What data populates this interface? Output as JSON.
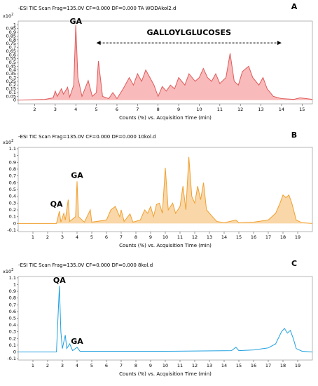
{
  "chart_data": [
    {
      "type": "line",
      "title": "-ESI TIC Scan Frag=135.0V CF=0.000 DF=0.000 TA WODAkol2.d",
      "panel_label": "A",
      "y_scale": {
        "base": "x10",
        "exponent": "2"
      },
      "x_label": "Counts (%) vs. Acquisition Time (min)",
      "color": "#e05a5a",
      "fill": "#f6a9a9",
      "xlim": [
        1.2,
        15.5
      ],
      "xticks": [
        2,
        3,
        4,
        5,
        6,
        7,
        8,
        9,
        10,
        11,
        12,
        13,
        14,
        15
      ],
      "ylim": [
        -0.05,
        1.05
      ],
      "yticks": [
        0,
        0.05,
        0.1,
        0.15,
        0.2,
        0.25,
        0.3,
        0.35,
        0.4,
        0.45,
        0.5,
        0.55,
        0.6,
        0.65,
        0.7,
        0.75,
        0.8,
        0.85,
        0.9,
        0.95,
        1
      ],
      "x": [
        1.2,
        2.5,
        2.9,
        3.0,
        3.1,
        3.3,
        3.4,
        3.6,
        3.7,
        3.9,
        4.0,
        4.1,
        4.3,
        4.6,
        4.8,
        5.0,
        5.1,
        5.3,
        5.6,
        5.8,
        6.0,
        6.3,
        6.6,
        6.8,
        7.0,
        7.2,
        7.4,
        7.6,
        7.8,
        8.0,
        8.2,
        8.4,
        8.6,
        8.8,
        9.0,
        9.3,
        9.5,
        9.8,
        10.0,
        10.2,
        10.4,
        10.6,
        10.8,
        11.0,
        11.3,
        11.5,
        11.7,
        11.9,
        12.1,
        12.4,
        12.6,
        12.9,
        13.1,
        13.3,
        13.6,
        14.0,
        14.6,
        14.9,
        15.5
      ],
      "values": [
        0,
        0.01,
        0.03,
        0.12,
        0.05,
        0.15,
        0.08,
        0.17,
        0.04,
        0.2,
        1.0,
        0.3,
        0.05,
        0.26,
        0.05,
        0.1,
        0.52,
        0.05,
        0.02,
        0.1,
        0.02,
        0.15,
        0.3,
        0.2,
        0.35,
        0.25,
        0.4,
        0.3,
        0.2,
        0.05,
        0.18,
        0.12,
        0.2,
        0.15,
        0.3,
        0.2,
        0.35,
        0.25,
        0.3,
        0.42,
        0.3,
        0.25,
        0.35,
        0.22,
        0.3,
        0.62,
        0.25,
        0.2,
        0.38,
        0.45,
        0.3,
        0.2,
        0.3,
        0.15,
        0.05,
        0.02,
        0.01,
        0.03,
        0.01
      ],
      "annotations": [
        {
          "text": "GA",
          "x": 4,
          "y": 1.04
        }
      ],
      "range_annotations": [
        {
          "text": "GALLOYLGLUCOSES",
          "x": [
            5,
            14
          ],
          "y": 0.76
        }
      ]
    },
    {
      "type": "line",
      "title": "-ESI TIC Scan Frag=135.0V CF=0.000 DF=0.000 10kol.d",
      "panel_label": "B",
      "y_scale": {
        "base": "x10",
        "exponent": "2"
      },
      "x_label": "Counts (%) vs. Acquisition Time (min)",
      "color": "#f0a030",
      "fill": "#f8cd92",
      "xlim": [
        0,
        20
      ],
      "xticks": [
        1,
        2,
        3,
        4,
        5,
        6,
        7,
        8,
        9,
        10,
        11,
        12,
        13,
        14,
        15,
        16,
        17,
        18,
        19
      ],
      "ylim": [
        -0.12,
        1.12
      ],
      "yticks": [
        -0.1,
        0,
        0.1,
        0.2,
        0.3,
        0.4,
        0.5,
        0.6,
        0.7,
        0.8,
        0.9,
        1,
        1.1
      ],
      "x": [
        0,
        2.6,
        2.8,
        2.9,
        3.1,
        3.2,
        3.4,
        3.5,
        3.9,
        4.0,
        4.1,
        4.5,
        4.9,
        5.0,
        6.0,
        6.3,
        6.6,
        6.9,
        7.0,
        7.2,
        7.6,
        7.8,
        8.3,
        8.6,
        8.8,
        9.0,
        9.2,
        9.4,
        9.6,
        9.8,
        10.0,
        10.2,
        10.5,
        10.7,
        11.0,
        11.2,
        11.4,
        11.6,
        11.8,
        12.0,
        12.2,
        12.4,
        12.6,
        12.8,
        13.2,
        13.5,
        14.0,
        14.8,
        15.0,
        16.0,
        17.0,
        17.5,
        17.8,
        18.0,
        18.2,
        18.4,
        18.6,
        18.9,
        19.3,
        20
      ],
      "values": [
        0,
        0,
        0.18,
        0.02,
        0.15,
        0.05,
        0.35,
        0.03,
        0.1,
        0.62,
        0.1,
        0.02,
        0.2,
        0.02,
        0.05,
        0.2,
        0.25,
        0.1,
        0.2,
        0.03,
        0.14,
        0.02,
        0.05,
        0.2,
        0.15,
        0.25,
        0.1,
        0.28,
        0.3,
        0.15,
        0.82,
        0.2,
        0.3,
        0.15,
        0.25,
        0.55,
        0.2,
        0.98,
        0.4,
        0.3,
        0.55,
        0.35,
        0.6,
        0.2,
        0.1,
        0.03,
        0.01,
        0.05,
        0.01,
        0.02,
        0.05,
        0.15,
        0.3,
        0.42,
        0.38,
        0.42,
        0.3,
        0.05,
        0.01,
        0
      ],
      "annotations": [
        {
          "text": "QA",
          "x": 2.6,
          "y": 0.28
        },
        {
          "text": "GA",
          "x": 4,
          "y": 0.7
        }
      ]
    },
    {
      "type": "line",
      "title": "-ESI TIC Scan Frag=135.0V CF=0.000 DF=0.000 8kol.d",
      "panel_label": "C",
      "y_scale": {
        "base": "x10",
        "exponent": "2"
      },
      "x_label": "Counts (%) vs. Acquisition Time (min)",
      "color": "#1ea0e0",
      "xlim": [
        0,
        20
      ],
      "xticks": [
        1,
        2,
        3,
        4,
        5,
        6,
        7,
        8,
        9,
        10,
        11,
        12,
        13,
        14,
        15,
        16,
        17,
        18,
        19
      ],
      "ylim": [
        -0.12,
        1.12
      ],
      "yticks": [
        -0.1,
        0,
        0.1,
        0.2,
        0.3,
        0.4,
        0.5,
        0.6,
        0.7,
        0.8,
        0.9,
        1,
        1.1
      ],
      "x": [
        0,
        2.6,
        2.8,
        2.9,
        3.0,
        3.2,
        3.3,
        3.5,
        3.7,
        4.0,
        4.2,
        6,
        10,
        14.5,
        14.8,
        15,
        16,
        17,
        17.5,
        17.9,
        18.1,
        18.3,
        18.5,
        18.7,
        18.9,
        19.3,
        20
      ],
      "values": [
        0,
        0,
        0.98,
        0.3,
        0.05,
        0.25,
        0.05,
        0.12,
        0.02,
        0.07,
        0.01,
        0.01,
        0.01,
        0.02,
        0.07,
        0.02,
        0.03,
        0.06,
        0.12,
        0.3,
        0.35,
        0.28,
        0.32,
        0.2,
        0.05,
        0.01,
        0
      ],
      "annotations": [
        {
          "text": "QA",
          "x": 2.8,
          "y": 1.06
        },
        {
          "text": "GA",
          "x": 4,
          "y": 0.15
        }
      ]
    }
  ]
}
